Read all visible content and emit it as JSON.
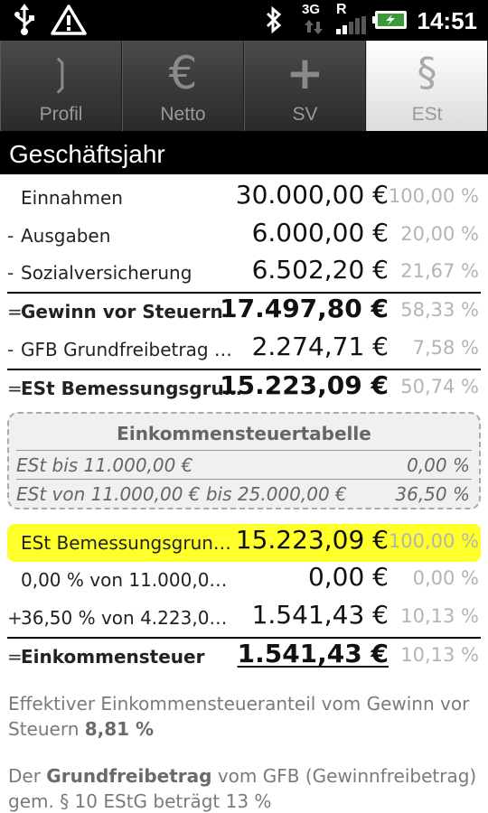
{
  "status_bar": {
    "time": "14:51",
    "icons": [
      "usb-icon",
      "warning-icon",
      "bluetooth-icon",
      "3g-icon",
      "roaming-icon",
      "signal-icon",
      "battery-icon"
    ],
    "network_label": "3G",
    "roaming_label": "R"
  },
  "tabs": [
    {
      "label": "Profil",
      "glyph": "❳",
      "active": false
    },
    {
      "label": "Netto",
      "glyph": "€",
      "active": false
    },
    {
      "label": "SV",
      "glyph": "+",
      "active": false
    },
    {
      "label": "ESt",
      "glyph": "§",
      "active": true
    }
  ],
  "section_title": "Geschäftsjahr",
  "rows": [
    {
      "op": "",
      "label": "Einnahmen",
      "amount": "30.000,00 €",
      "percent": "100,00 %"
    },
    {
      "op": "-",
      "label": "Ausgaben",
      "amount": "6.000,00 €",
      "percent": "20,00 %"
    },
    {
      "op": "-",
      "label": "Sozialversicherung",
      "amount": "6.502,20 €",
      "percent": "21,67 %"
    },
    {
      "op": "=",
      "label": "Gewinn vor Steuern",
      "amount": "17.497,80 €",
      "percent": "58,33 %"
    },
    {
      "op": "-",
      "label": "GFB Grundfreibetrag …",
      "amount": "2.274,71 €",
      "percent": "7,58 %"
    },
    {
      "op": "=",
      "label": "ESt Bemessungsgru…",
      "amount": "15.223,09 €",
      "percent": "50,74 %"
    }
  ],
  "tax_table": {
    "title": "Einkommensteuertabelle",
    "brackets": [
      {
        "label": "ESt bis 11.000,00 €",
        "rate": "0,00 %"
      },
      {
        "label": "ESt von 11.000,00 € bis 25.000,00 €",
        "rate": "36,50 %"
      }
    ]
  },
  "calc_rows": [
    {
      "op": "",
      "label": "ESt Bemessungsgrun…",
      "amount": "15.223,09 €",
      "percent": "100,00 %",
      "highlight": true
    },
    {
      "op": "",
      "label": "0,00 % von 11.000,0…",
      "amount": "0,00 €",
      "percent": "0,00 %"
    },
    {
      "op": "+",
      "label": "36,50 % von 4.223,0…",
      "amount": "1.541,43 €",
      "percent": "10,13 %"
    },
    {
      "op": "=",
      "label": "Einkommensteuer",
      "amount": "1.541,43 €",
      "percent": "10,13 %"
    }
  ],
  "paragraphs": {
    "p1_text": "Effektiver Einkommensteueranteil vom Gewinn vor Steuern ",
    "p1_value": "8,81 %",
    "p2_prefix": "Der ",
    "p2_bold": "Grundfreibetrag",
    "p2_rest": " vom GFB (Gewinnfreibetrag) gem. § 10 EStG beträgt 13 %"
  },
  "colors": {
    "highlight": "#ffff2a",
    "header_bg": "#000000",
    "tab_active_bg": "#ffffff"
  }
}
